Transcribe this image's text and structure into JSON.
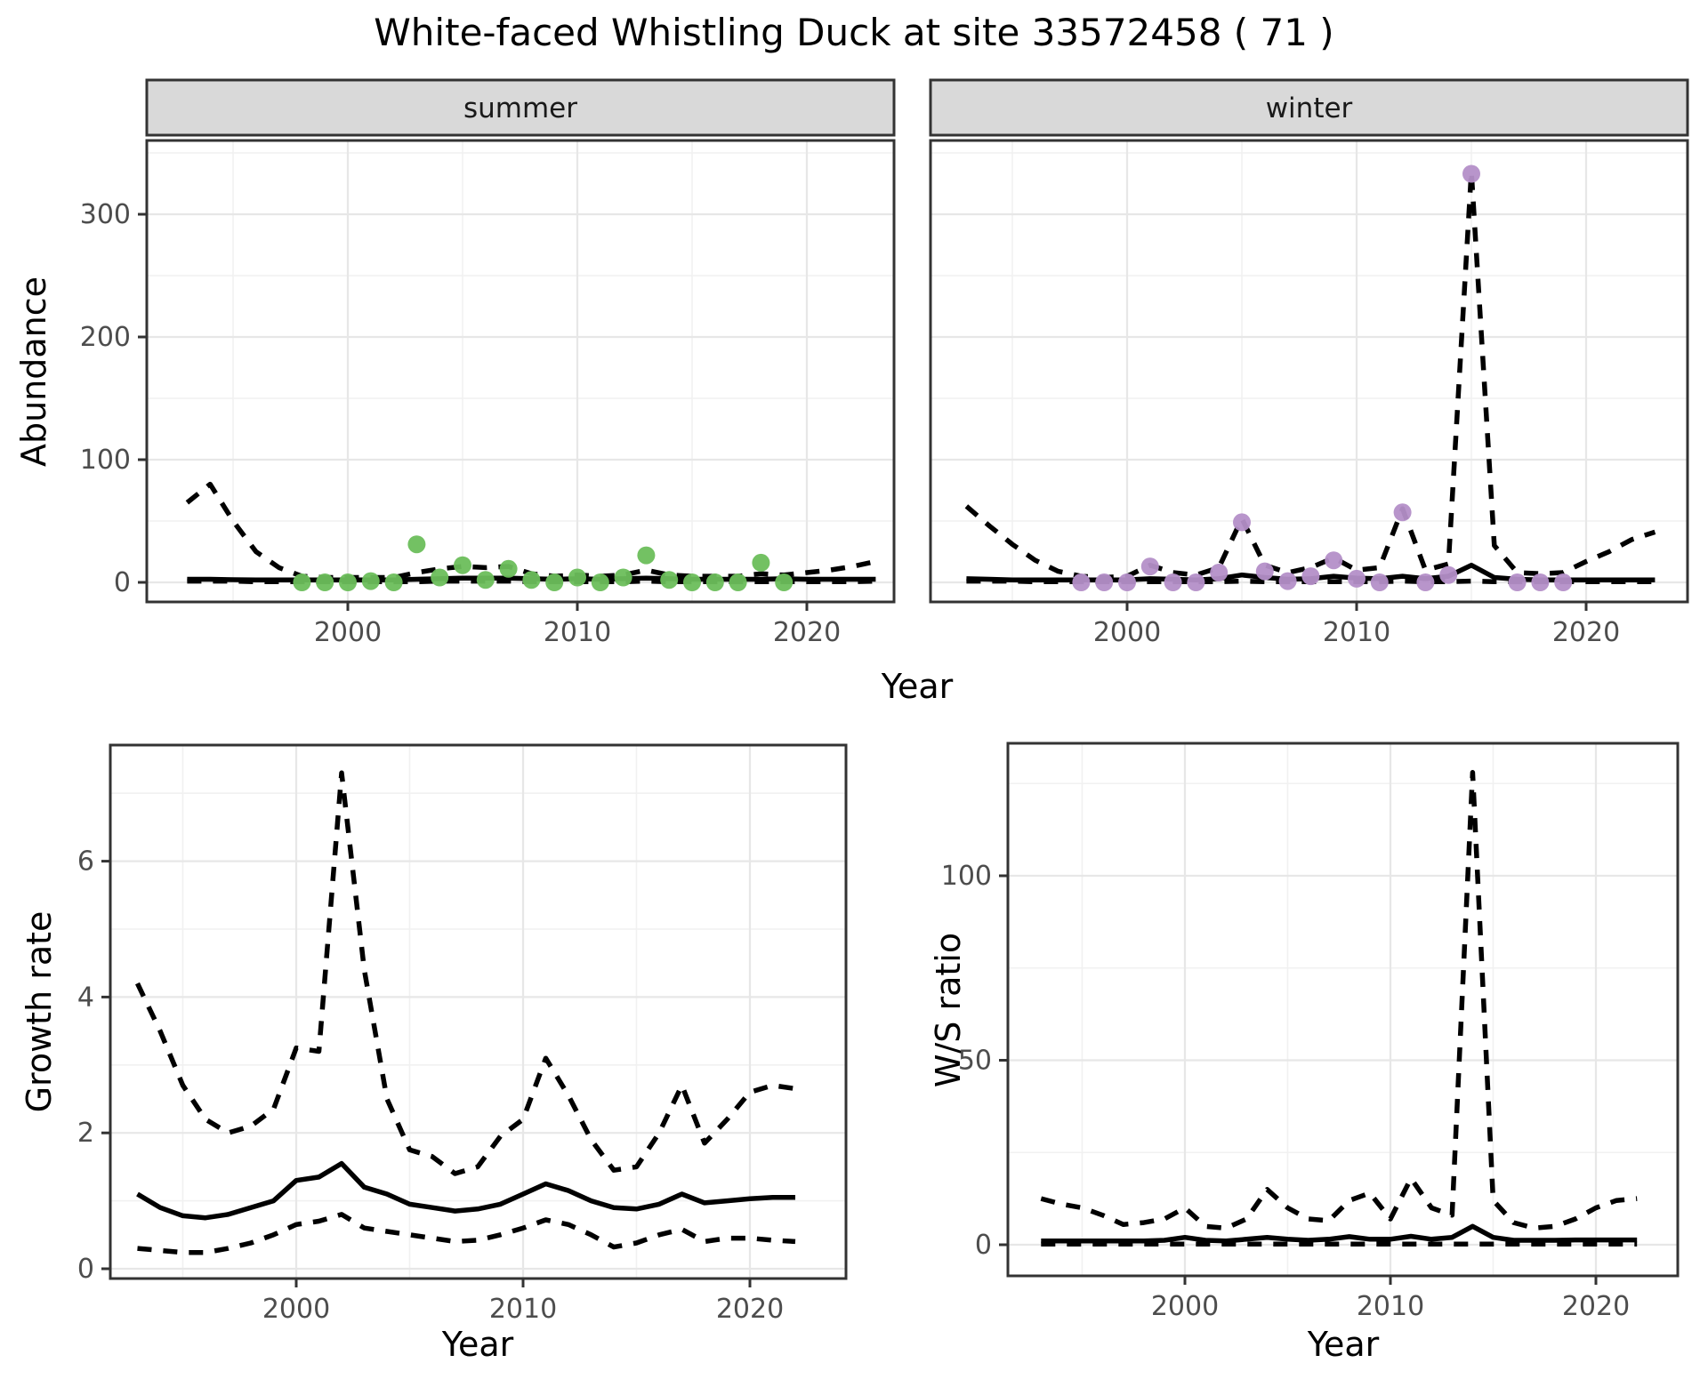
{
  "title": "White-faced Whistling Duck at site 33572458 ( 71 )",
  "colors": {
    "summer_point": "#6CBE5B",
    "winter_point": "#B48FC8",
    "line": "#000000",
    "strip_bg": "#D9D9D9",
    "panel_border": "#333333",
    "grid_major": "#E7E7E7",
    "grid_minor": "#F1F1F1",
    "tick_text": "#4D4D4D"
  },
  "chart_data": [
    {
      "id": "abundance",
      "type": "line",
      "ylabel": "Abundance",
      "xlabel": "Year",
      "yticks": [
        0,
        100,
        200,
        300
      ],
      "xticks": [
        2000,
        2010,
        2020
      ],
      "xlim": [
        1991.2,
        2023.8
      ],
      "ylim": [
        -16,
        360
      ],
      "years": [
        1993,
        1994,
        1995,
        1996,
        1997,
        1998,
        1999,
        2000,
        2001,
        2002,
        2003,
        2004,
        2005,
        2006,
        2007,
        2008,
        2009,
        2010,
        2011,
        2012,
        2013,
        2014,
        2015,
        2016,
        2017,
        2018,
        2019,
        2020,
        2021,
        2022,
        2023
      ],
      "facets": [
        {
          "label": "summer",
          "point_color": "#6CBE5B",
          "points": {
            "years": [
              1998,
              1999,
              2000,
              2001,
              2002,
              2003,
              2004,
              2005,
              2006,
              2007,
              2008,
              2009,
              2010,
              2011,
              2012,
              2013,
              2014,
              2015,
              2016,
              2017,
              2018,
              2019
            ],
            "values": [
              0,
              0,
              0,
              1,
              0,
              31,
              4,
              14,
              2,
              11,
              2,
              0,
              4,
              0,
              4,
              22,
              2,
              0,
              0,
              0,
              16,
              0
            ]
          },
          "series": [
            {
              "name": "upper_ci",
              "style": "dashed",
              "values": [
                65,
                80,
                50,
                25,
                12,
                5,
                4,
                4,
                4,
                4,
                8,
                11,
                13,
                12,
                13,
                7,
                5,
                6,
                5,
                6,
                10,
                6,
                5,
                5,
                5,
                7,
                6,
                8,
                10,
                13,
                17
              ]
            },
            {
              "name": "median",
              "style": "solid",
              "values": [
                2.5,
                2.5,
                2.2,
                2,
                2,
                2,
                2,
                2,
                2,
                2,
                2.5,
                3,
                3.5,
                3.5,
                3.5,
                3,
                2.5,
                3,
                2.5,
                3,
                3.5,
                3,
                2.5,
                2.5,
                2.5,
                2.5,
                3,
                2.5,
                2.5,
                2.5,
                2.5
              ]
            },
            {
              "name": "lower_ci",
              "style": "dashed",
              "values": [
                1,
                1,
                1,
                0.5,
                0.5,
                0.5,
                0.5,
                0.5,
                0.5,
                0.5,
                0.5,
                1,
                1,
                1,
                1,
                0.5,
                0.5,
                0.5,
                0.5,
                0.5,
                1,
                0.5,
                0.5,
                0.5,
                0.5,
                0.5,
                0.5,
                0.5,
                0.5,
                0.5,
                1
              ]
            }
          ]
        },
        {
          "label": "winter",
          "point_color": "#B48FC8",
          "points": {
            "years": [
              1998,
              1999,
              2000,
              2001,
              2002,
              2003,
              2004,
              2005,
              2006,
              2007,
              2008,
              2009,
              2010,
              2011,
              2012,
              2013,
              2014,
              2015,
              2017,
              2018,
              2019
            ],
            "values": [
              0,
              0,
              0,
              13,
              0,
              0,
              8,
              49,
              9,
              1,
              5,
              18,
              3,
              0,
              57,
              0,
              6,
              333,
              0,
              0,
              0
            ]
          },
          "series": [
            {
              "name": "upper_ci",
              "style": "dashed",
              "values": [
                62,
                46,
                31,
                18,
                9,
                5,
                4,
                5,
                14,
                8,
                6,
                12,
                52,
                14,
                8,
                12,
                20,
                10,
                12,
                60,
                10,
                15,
                335,
                30,
                8,
                7,
                8,
                17,
                25,
                35,
                41
              ]
            },
            {
              "name": "median",
              "style": "solid",
              "values": [
                3,
                2.5,
                2,
                2,
                2,
                2,
                2,
                2,
                3,
                2.5,
                2,
                3,
                6,
                4,
                2.5,
                3,
                5,
                3.5,
                3,
                5,
                3,
                5,
                14,
                4,
                2.5,
                2,
                2,
                2,
                2,
                2,
                2
              ]
            },
            {
              "name": "lower_ci",
              "style": "dashed",
              "values": [
                1,
                1,
                1,
                0.5,
                0.5,
                0.5,
                0.5,
                0.5,
                0.5,
                0.5,
                0.5,
                0.5,
                1,
                0.5,
                0.5,
                0.5,
                0.5,
                0.5,
                0.5,
                1,
                0.5,
                0.5,
                1,
                0.5,
                0.5,
                0.5,
                0.5,
                0.5,
                0.5,
                0.5,
                0.5
              ]
            }
          ]
        }
      ]
    },
    {
      "id": "growth_rate",
      "type": "line",
      "ylabel": "Growth rate",
      "xlabel": "Year",
      "yticks": [
        0,
        2,
        4,
        6
      ],
      "xticks": [
        2000,
        2010,
        2020
      ],
      "xlim": [
        1991.8,
        2024.2
      ],
      "ylim": [
        -0.15,
        7.7
      ],
      "years": [
        1993,
        1994,
        1995,
        1996,
        1997,
        1998,
        1999,
        2000,
        2001,
        2002,
        2003,
        2004,
        2005,
        2006,
        2007,
        2008,
        2009,
        2010,
        2011,
        2012,
        2013,
        2014,
        2015,
        2016,
        2017,
        2018,
        2019,
        2020,
        2021,
        2022
      ],
      "series": [
        {
          "name": "upper_ci",
          "style": "dashed",
          "values": [
            4.2,
            3.5,
            2.7,
            2.2,
            2.0,
            2.1,
            2.35,
            3.25,
            3.2,
            7.3,
            4.4,
            2.5,
            1.75,
            1.65,
            1.4,
            1.5,
            1.95,
            2.2,
            3.1,
            2.55,
            1.9,
            1.45,
            1.5,
            2.0,
            2.7,
            1.85,
            2.2,
            2.6,
            2.7,
            2.65
          ]
        },
        {
          "name": "median",
          "style": "solid",
          "values": [
            1.1,
            0.9,
            0.78,
            0.75,
            0.8,
            0.9,
            1.0,
            1.3,
            1.35,
            1.55,
            1.2,
            1.1,
            0.95,
            0.9,
            0.85,
            0.88,
            0.95,
            1.1,
            1.25,
            1.15,
            1.0,
            0.9,
            0.88,
            0.95,
            1.1,
            0.97,
            1.0,
            1.03,
            1.05,
            1.05
          ]
        },
        {
          "name": "lower_ci",
          "style": "dashed",
          "values": [
            0.3,
            0.27,
            0.24,
            0.24,
            0.3,
            0.38,
            0.5,
            0.65,
            0.7,
            0.8,
            0.6,
            0.55,
            0.5,
            0.45,
            0.4,
            0.42,
            0.5,
            0.6,
            0.72,
            0.65,
            0.5,
            0.32,
            0.38,
            0.5,
            0.58,
            0.4,
            0.45,
            0.45,
            0.42,
            0.4
          ]
        }
      ]
    },
    {
      "id": "ws_ratio",
      "type": "line",
      "ylabel": "W/S ratio",
      "xlabel": "Year",
      "yticks": [
        0,
        50,
        100
      ],
      "xticks": [
        2000,
        2010,
        2020
      ],
      "xlim": [
        1991.4,
        2024.0
      ],
      "ylim": [
        -7,
        136
      ],
      "years": [
        1993,
        1994,
        1995,
        1996,
        1997,
        1998,
        1999,
        2000,
        2001,
        2002,
        2003,
        2004,
        2005,
        2006,
        2007,
        2008,
        2009,
        2010,
        2011,
        2012,
        2013,
        2014,
        2015,
        2016,
        2017,
        2018,
        2019,
        2020,
        2021,
        2022
      ],
      "series": [
        {
          "name": "upper_ci",
          "style": "dashed",
          "values": [
            12.5,
            11,
            10,
            8,
            5.5,
            6,
            7,
            10,
            5,
            4.5,
            7,
            15,
            10,
            7,
            6.5,
            12,
            14,
            7,
            18,
            10,
            8,
            128,
            12,
            6,
            4.5,
            5,
            7,
            10,
            12,
            12.5
          ]
        },
        {
          "name": "median",
          "style": "solid",
          "values": [
            1,
            1,
            1,
            1,
            1,
            1,
            1.2,
            2,
            1.2,
            1,
            1.5,
            2,
            1.5,
            1.2,
            1.5,
            2.2,
            1.5,
            1.5,
            2.3,
            1.5,
            2,
            5,
            2,
            1.2,
            1.2,
            1.2,
            1.3,
            1.3,
            1.3,
            1.3
          ]
        },
        {
          "name": "lower_ci",
          "style": "dashed",
          "values": [
            0.2,
            0.2,
            0.2,
            0.2,
            0.2,
            0.2,
            0.2,
            0.2,
            0.2,
            0.2,
            0.2,
            0.2,
            0.2,
            0.2,
            0.2,
            0.2,
            0.2,
            0.2,
            0.2,
            0.2,
            0.2,
            0.2,
            0.2,
            0.2,
            0.2,
            0.2,
            0.2,
            0.2,
            0.2,
            0.2
          ]
        }
      ]
    }
  ]
}
